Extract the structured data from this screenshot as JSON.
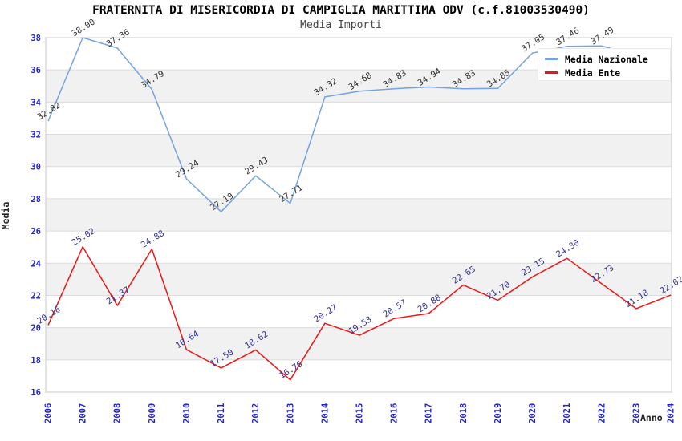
{
  "header": {
    "title": "FRATERNITA DI MISERICORDIA DI CAMPIGLIA MARITTIMA ODV (c.f.81003530490)",
    "subtitle": "Media Importi"
  },
  "axes": {
    "x_title": "Anno",
    "y_title": "Media"
  },
  "legend": {
    "position": "top-right",
    "items": [
      {
        "label": "Media Nazionale",
        "color": "#73a3e0"
      },
      {
        "label": "Media Ente",
        "color": "#ee1515"
      }
    ]
  },
  "chart_data": {
    "type": "line",
    "title": "FRATERNITA DI MISERICORDIA DI CAMPIGLIA MARITTIMA ODV (c.f.81003530490)",
    "subtitle": "Media Importi",
    "xlabel": "Anno",
    "ylabel": "Media",
    "ylim": [
      16,
      38
    ],
    "ytick_step": 2,
    "yticks": [
      16,
      18,
      20,
      22,
      24,
      26,
      28,
      30,
      32,
      34,
      36,
      38
    ],
    "grid": "horizontal-bands",
    "legend_position": "top-right",
    "categories": [
      "2006",
      "2007",
      "2008",
      "2009",
      "2010",
      "2011",
      "2012",
      "2013",
      "2014",
      "2015",
      "2016",
      "2017",
      "2018",
      "2019",
      "2020",
      "2021",
      "2022",
      "2023",
      "2024"
    ],
    "series": [
      {
        "name": "Media Nazionale",
        "color": "#73a3e0",
        "label_color": "#333333",
        "values": [
          32.82,
          38.0,
          37.36,
          34.79,
          29.24,
          27.19,
          29.43,
          27.71,
          34.32,
          34.68,
          34.83,
          34.94,
          34.83,
          34.85,
          37.05,
          37.46,
          37.49,
          36.9,
          36.9
        ],
        "point_labels": [
          "32.82",
          "38.00",
          "37.36",
          "34.79",
          "29.24",
          "27.19",
          "29.43",
          "27.71",
          "34.32",
          "34.68",
          "34.83",
          "34.94",
          "34.83",
          "34.85",
          "37.05",
          "37.46",
          "37.49",
          "",
          ""
        ]
      },
      {
        "name": "Media Ente",
        "color": "#ee1515",
        "label_color": "#323296",
        "values": [
          20.16,
          25.02,
          21.37,
          24.88,
          18.64,
          17.5,
          18.62,
          16.76,
          20.27,
          19.53,
          20.57,
          20.88,
          22.65,
          21.7,
          23.15,
          24.3,
          22.73,
          21.18,
          22.02
        ],
        "point_labels": [
          "20.16",
          "25.02",
          "21.37",
          "24.88",
          "18.64",
          "17.50",
          "18.62",
          "16.76",
          "20.27",
          "19.53",
          "20.57",
          "20.88",
          "22.65",
          "21.70",
          "23.15",
          "24.30",
          "22.73",
          "21.18",
          "22.02"
        ]
      }
    ],
    "style": {
      "band_fill": "#f1f1f1",
      "gridline_color": "#dcdcdc",
      "plot_border_color": "#c8c8c8",
      "tick_label_color": "#2222cc"
    }
  }
}
